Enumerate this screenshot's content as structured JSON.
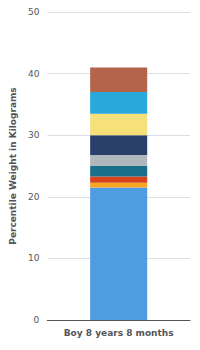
{
  "chart_data": {
    "type": "bar",
    "stacked": true,
    "grid": true,
    "categories": [
      "Boy 8 years 8 months"
    ],
    "ylabel": "Percentile Weight in Kilograms",
    "series": [
      {
        "color": "#4d9de0",
        "values": [
          21.5
        ]
      },
      {
        "color": "#f5a623",
        "values": [
          0.8
        ]
      },
      {
        "color": "#d9431e",
        "values": [
          1.0
        ]
      },
      {
        "color": "#1a6f8a",
        "values": [
          1.7
        ]
      },
      {
        "color": "#b0b8be",
        "values": [
          1.8
        ]
      },
      {
        "color": "#2b3f6b",
        "values": [
          3.2
        ]
      },
      {
        "color": "#f6e07a",
        "values": [
          3.5
        ]
      },
      {
        "color": "#29a8dc",
        "values": [
          3.5
        ]
      },
      {
        "color": "#b3644a",
        "values": [
          4.0
        ]
      }
    ],
    "ylim": [
      0,
      50
    ],
    "yticks": [
      0,
      10,
      20,
      30,
      40,
      50
    ]
  }
}
